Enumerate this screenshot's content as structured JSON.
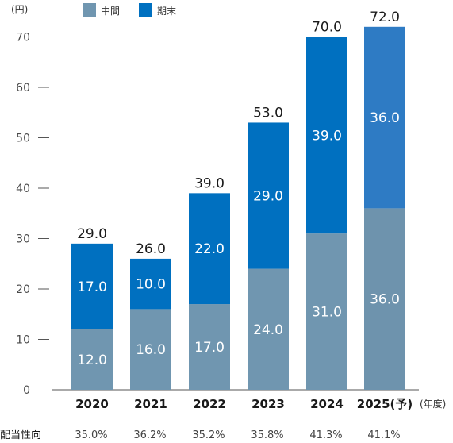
{
  "chart_data": {
    "type": "bar",
    "stacked": true,
    "unit_label": "(円)",
    "x_unit_label": "(年度)",
    "categories": [
      "2020",
      "2021",
      "2022",
      "2023",
      "2024",
      "2025(予)"
    ],
    "series": [
      {
        "name": "中間",
        "color": "#7096b0",
        "values": [
          12.0,
          16.0,
          17.0,
          24.0,
          31.0,
          36.0
        ],
        "labels": [
          "12.0",
          "16.0",
          "17.0",
          "24.0",
          "31.0",
          "36.0"
        ]
      },
      {
        "name": "期末",
        "color": "#0070c0",
        "values": [
          17.0,
          10.0,
          22.0,
          29.0,
          39.0,
          36.0
        ],
        "labels": [
          "17.0",
          "10.0",
          "22.0",
          "29.0",
          "39.0",
          "36.0"
        ]
      }
    ],
    "last_bar_colors": [
      "#6e93ad",
      "#2e7bc4"
    ],
    "totals": [
      "29.0",
      "26.0",
      "39.0",
      "53.0",
      "70.0",
      "72.0"
    ],
    "ylim": [
      0,
      72
    ],
    "yticks": [
      0,
      10,
      20,
      30,
      40,
      50,
      60,
      70
    ],
    "ytick_labels": [
      "0",
      "10",
      "20",
      "30",
      "40",
      "50",
      "60",
      "70"
    ],
    "legend_position": "top-left",
    "grid": false,
    "payout_label": "配当性向",
    "payout_ratios": [
      "35.0%",
      "36.2%",
      "35.2%",
      "35.8%",
      "41.3%",
      "41.1%"
    ]
  }
}
